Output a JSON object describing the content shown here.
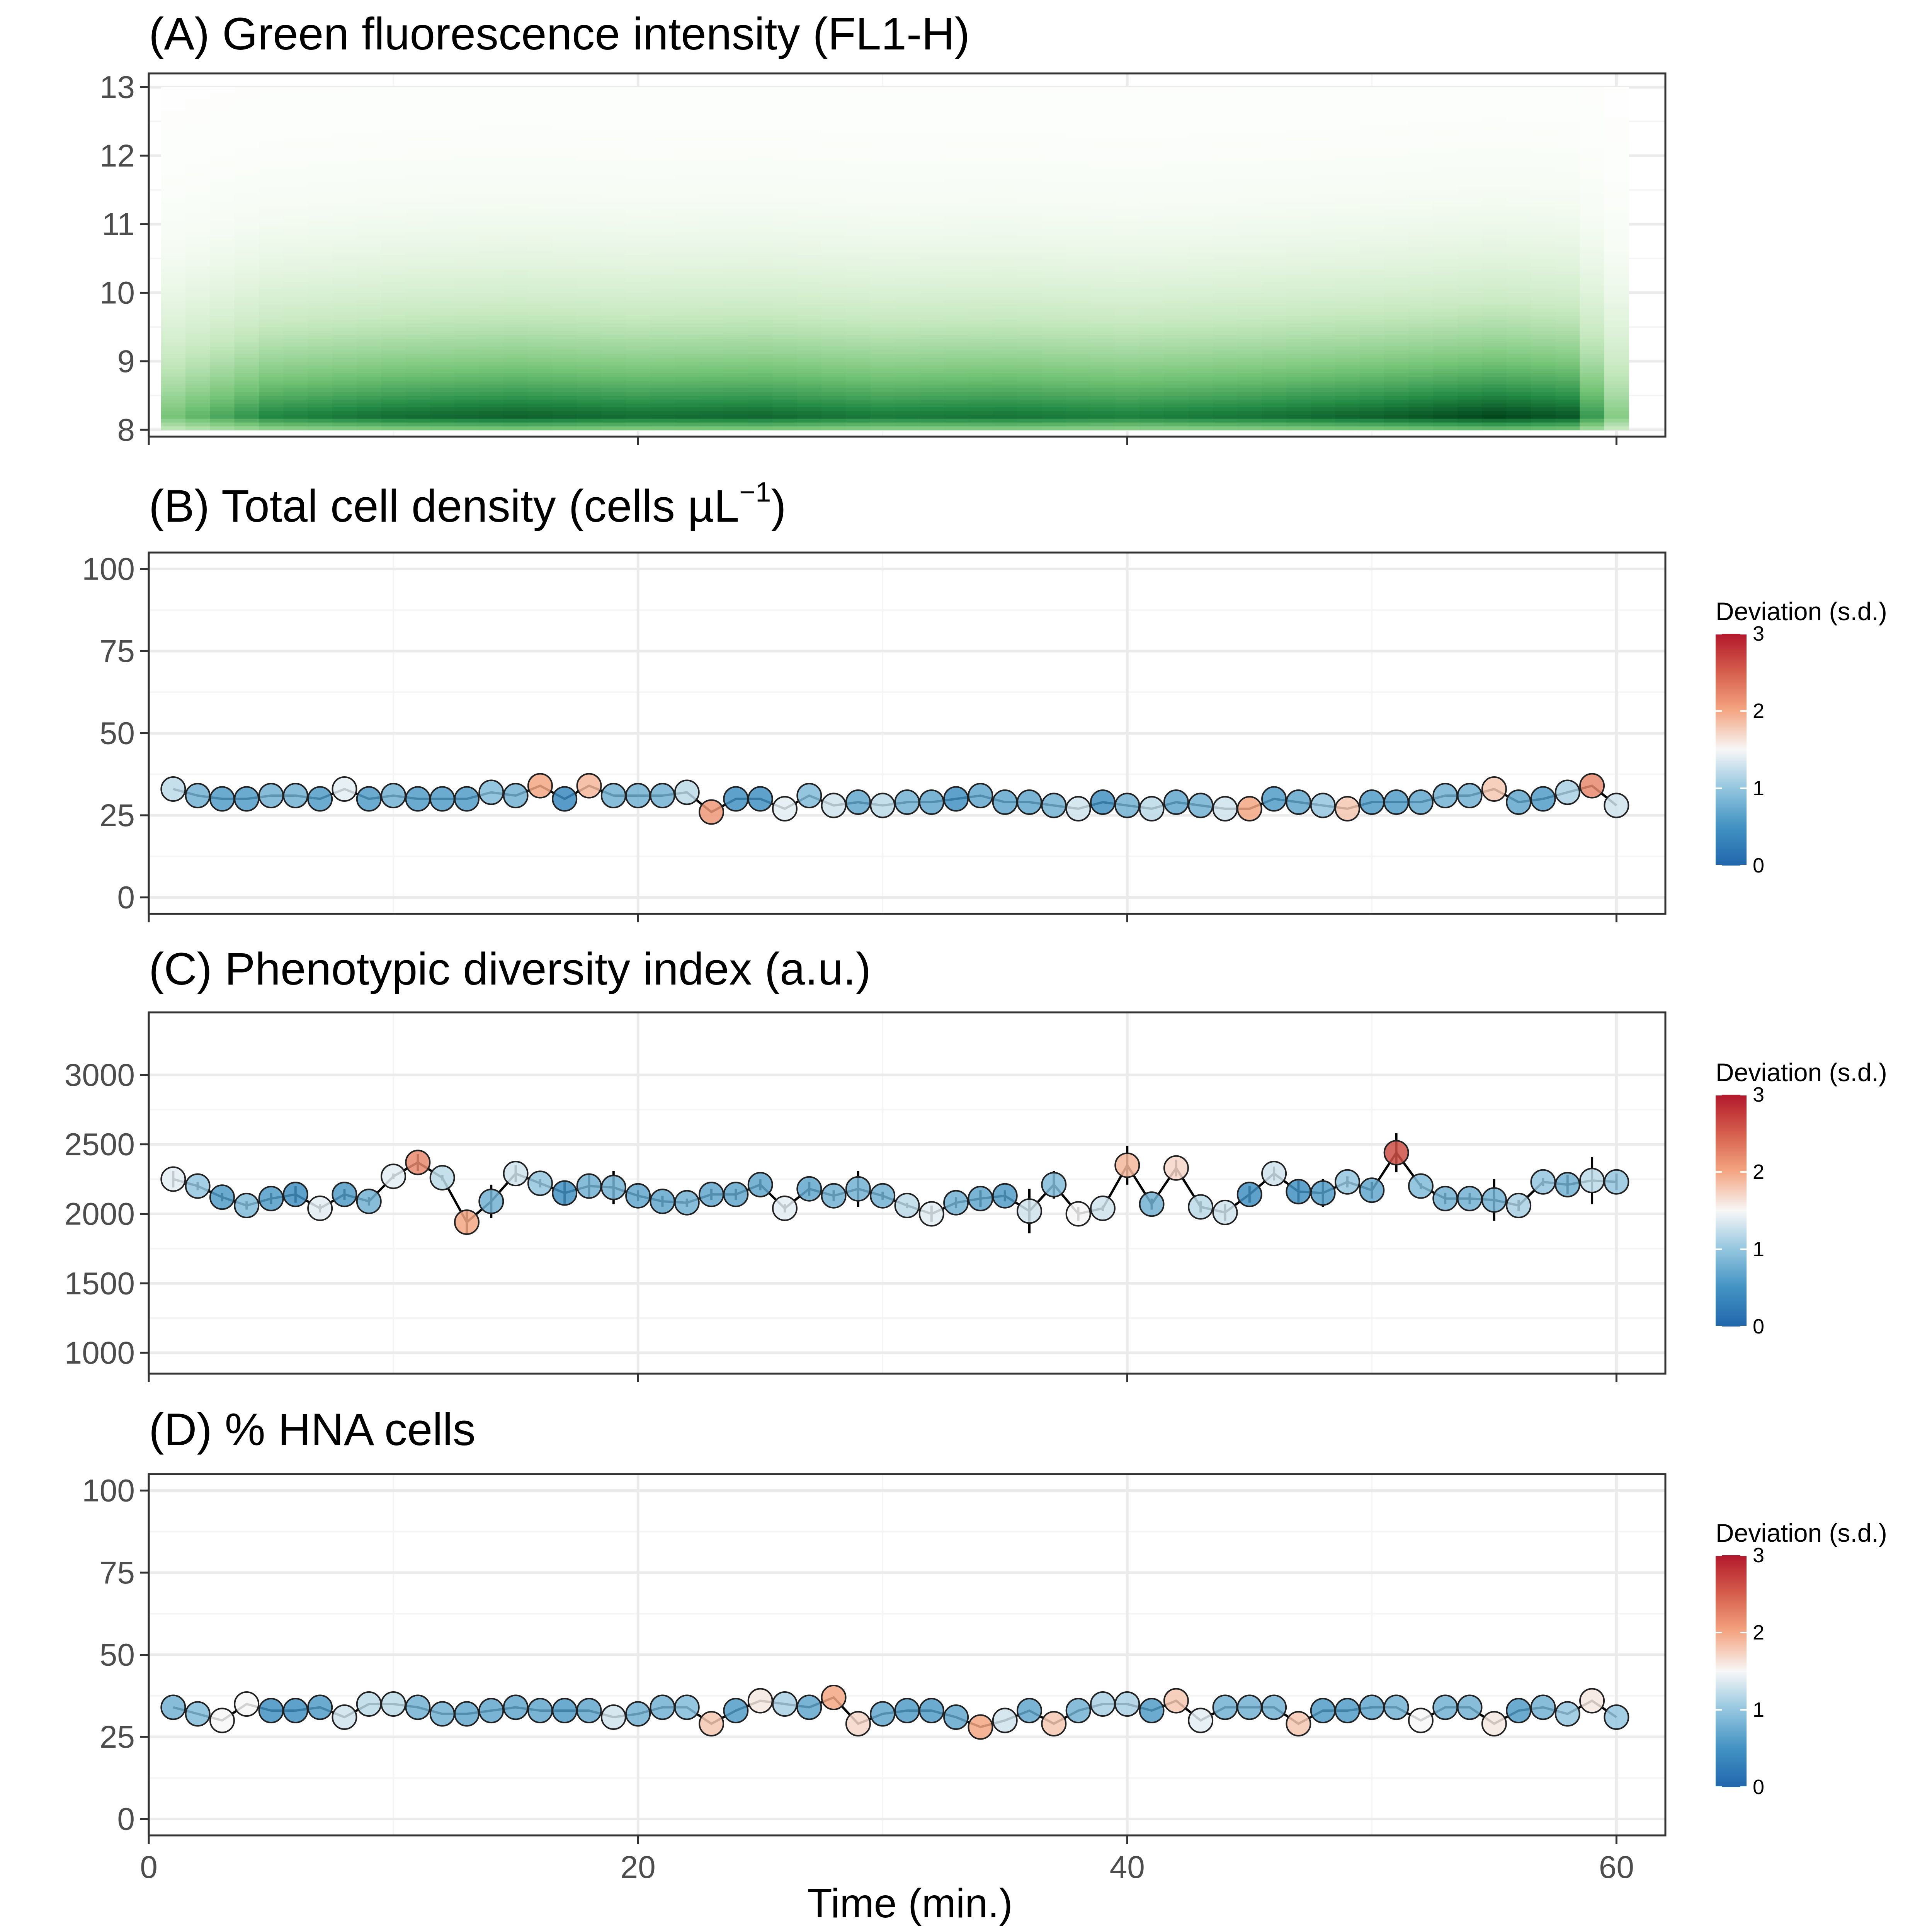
{
  "colors": {
    "panel_border": "#333333",
    "grid_major": "#ebebeb",
    "grid_minor": "#f5f5f5",
    "green_dark": "#00441b",
    "green_mid": "#41ab5d",
    "green_light": "#f7fcf5",
    "deviation_low": "#2166ac",
    "deviation_mid": "#f7f7f7",
    "deviation_high": "#b2182b"
  },
  "x_axis": {
    "label": "Time (min.)",
    "ticks": [
      "0",
      "20",
      "40",
      "60"
    ],
    "tick_values": [
      0,
      20,
      40,
      60
    ],
    "range": [
      0,
      62
    ]
  },
  "legend": {
    "title": "Deviation (s.d.)",
    "ticks": [
      "0",
      "1",
      "2",
      "3"
    ],
    "tick_values": [
      0,
      1,
      2,
      3
    ]
  },
  "chart_data": [
    {
      "id": "A",
      "type": "heatmap",
      "title": "(A) Green fluorescence intensity (FL1-H)",
      "xlabel": "",
      "ylabel": "",
      "x_range": [
        1,
        60
      ],
      "ylim": [
        7.9,
        13.2
      ],
      "y_ticks": [
        "8",
        "9",
        "10",
        "11",
        "12",
        "13"
      ],
      "y_tick_values": [
        8,
        9,
        10,
        11,
        12,
        13
      ],
      "y_extent": [
        8,
        13
      ],
      "density_peak_y": 8.2,
      "intensity_profile_x": [
        1,
        5,
        10,
        15,
        20,
        25,
        30,
        35,
        40,
        45,
        50,
        55,
        58,
        60
      ],
      "intensity_profile_value": [
        0.55,
        0.8,
        0.88,
        0.92,
        0.88,
        0.9,
        0.84,
        0.86,
        0.82,
        0.86,
        0.92,
        1.0,
        0.95,
        0.5
      ]
    },
    {
      "id": "B",
      "type": "scatter",
      "title": "(B) Total cell density (cells µL⁻¹)",
      "title_base": "(B) Total cell density (cells µL",
      "title_sup": "−1",
      "title_end": ")",
      "xlabel": "",
      "ylabel": "",
      "ylim": [
        -5,
        105
      ],
      "y_ticks": [
        "0",
        "25",
        "50",
        "75",
        "100"
      ],
      "y_tick_values": [
        0,
        25,
        50,
        75,
        100
      ],
      "x": [
        1,
        2,
        3,
        4,
        5,
        6,
        7,
        8,
        9,
        10,
        11,
        12,
        13,
        14,
        15,
        16,
        17,
        18,
        19,
        20,
        21,
        22,
        23,
        24,
        25,
        26,
        27,
        28,
        29,
        30,
        31,
        32,
        33,
        34,
        35,
        36,
        37,
        38,
        39,
        40,
        41,
        42,
        43,
        44,
        45,
        46,
        47,
        48,
        49,
        50,
        51,
        52,
        53,
        54,
        55,
        56,
        57,
        58,
        59,
        60
      ],
      "y": [
        33,
        31,
        30,
        30,
        31,
        31,
        30,
        33,
        30,
        31,
        30,
        30,
        30,
        32,
        31,
        34,
        30,
        34,
        31,
        31,
        31,
        32,
        26,
        30,
        30,
        27,
        31,
        28,
        29,
        28,
        29,
        29,
        30,
        31,
        29,
        29,
        28,
        27,
        29,
        28,
        27,
        29,
        28,
        27,
        27,
        30,
        29,
        28,
        27,
        29,
        29,
        29,
        31,
        31,
        33,
        29,
        30,
        32,
        34,
        28
      ],
      "error": [
        0,
        0,
        0,
        0,
        0,
        0,
        0,
        0,
        0,
        0,
        0,
        0,
        0,
        0,
        0,
        0,
        0,
        0,
        0,
        0,
        0,
        0,
        0,
        0,
        0,
        0,
        0,
        0,
        0,
        0,
        0,
        0,
        0,
        0,
        0,
        0,
        0,
        0,
        0,
        0,
        0,
        0,
        0,
        0,
        0,
        0,
        0,
        0,
        0,
        0,
        0,
        0,
        0,
        0,
        0,
        0,
        0,
        0,
        0,
        0
      ],
      "deviation": [
        1.2,
        0.8,
        0.6,
        0.6,
        0.8,
        0.8,
        0.6,
        1.4,
        0.6,
        0.8,
        0.6,
        0.6,
        0.6,
        0.9,
        0.8,
        2.0,
        0.4,
        1.9,
        0.8,
        0.8,
        0.8,
        1.2,
        2.1,
        0.5,
        0.5,
        1.4,
        0.9,
        1.3,
        0.7,
        1.2,
        0.8,
        0.7,
        0.5,
        0.7,
        0.7,
        0.7,
        0.8,
        1.3,
        0.5,
        0.8,
        1.2,
        0.7,
        0.8,
        1.3,
        2.0,
        0.6,
        0.7,
        1.0,
        1.8,
        0.6,
        0.6,
        0.7,
        0.8,
        0.8,
        1.8,
        0.7,
        0.6,
        1.1,
        2.2,
        1.3
      ]
    },
    {
      "id": "C",
      "type": "scatter",
      "title": "(C) Phenotypic diversity index (a.u.)",
      "xlabel": "",
      "ylabel": "",
      "ylim": [
        850,
        3450
      ],
      "y_ticks": [
        "1000",
        "1500",
        "2000",
        "2500",
        "3000"
      ],
      "y_tick_values": [
        1000,
        1500,
        2000,
        2500,
        3000
      ],
      "x": [
        1,
        2,
        3,
        4,
        5,
        6,
        7,
        8,
        9,
        10,
        11,
        12,
        13,
        14,
        15,
        16,
        17,
        18,
        19,
        20,
        21,
        22,
        23,
        24,
        25,
        26,
        27,
        28,
        29,
        30,
        31,
        32,
        33,
        34,
        35,
        36,
        37,
        38,
        39,
        40,
        41,
        42,
        43,
        44,
        45,
        46,
        47,
        48,
        49,
        50,
        51,
        52,
        53,
        54,
        55,
        56,
        57,
        58,
        59,
        60
      ],
      "y": [
        2250,
        2200,
        2120,
        2060,
        2110,
        2140,
        2040,
        2140,
        2090,
        2270,
        2370,
        2260,
        1940,
        2090,
        2290,
        2220,
        2150,
        2200,
        2190,
        2130,
        2090,
        2080,
        2140,
        2140,
        2210,
        2040,
        2180,
        2130,
        2180,
        2130,
        2060,
        2000,
        2080,
        2110,
        2130,
        2020,
        2210,
        2000,
        2040,
        2350,
        2070,
        2330,
        2050,
        2010,
        2140,
        2290,
        2160,
        2150,
        2230,
        2170,
        2440,
        2200,
        2110,
        2110,
        2100,
        2060,
        2230,
        2210,
        2240,
        2230
      ],
      "error": [
        60,
        30,
        30,
        30,
        40,
        60,
        30,
        40,
        30,
        20,
        60,
        20,
        80,
        120,
        60,
        30,
        80,
        80,
        120,
        40,
        40,
        30,
        40,
        40,
        40,
        30,
        50,
        40,
        130,
        30,
        20,
        60,
        40,
        60,
        40,
        160,
        100,
        50,
        20,
        140,
        40,
        60,
        40,
        60,
        60,
        50,
        80,
        100,
        40,
        60,
        140,
        20,
        40,
        40,
        150,
        40,
        30,
        70,
        170,
        60
      ],
      "deviation": [
        1.4,
        1.0,
        0.6,
        0.9,
        0.6,
        0.5,
        1.4,
        0.6,
        0.8,
        1.4,
        2.2,
        1.2,
        2.0,
        0.8,
        1.3,
        1.0,
        0.5,
        0.8,
        0.8,
        0.7,
        0.7,
        0.8,
        0.7,
        0.7,
        0.7,
        1.4,
        0.7,
        0.8,
        0.8,
        0.8,
        1.2,
        1.4,
        0.8,
        0.7,
        0.6,
        1.3,
        0.9,
        1.5,
        1.3,
        1.9,
        0.8,
        1.7,
        1.2,
        1.3,
        0.5,
        1.3,
        0.5,
        0.6,
        1.0,
        0.7,
        2.6,
        0.9,
        0.8,
        0.8,
        0.8,
        1.1,
        1.0,
        0.8,
        1.2,
        1.0
      ]
    },
    {
      "id": "D",
      "type": "scatter",
      "title": "(D) % HNA cells",
      "xlabel": "",
      "ylabel": "",
      "ylim": [
        -5,
        105
      ],
      "y_ticks": [
        "0",
        "25",
        "50",
        "75",
        "100"
      ],
      "y_tick_values": [
        0,
        25,
        50,
        75,
        100
      ],
      "x": [
        1,
        2,
        3,
        4,
        5,
        6,
        7,
        8,
        9,
        10,
        11,
        12,
        13,
        14,
        15,
        16,
        17,
        18,
        19,
        20,
        21,
        22,
        23,
        24,
        25,
        26,
        27,
        28,
        29,
        30,
        31,
        32,
        33,
        34,
        35,
        36,
        37,
        38,
        39,
        40,
        41,
        42,
        43,
        44,
        45,
        46,
        47,
        48,
        49,
        50,
        51,
        52,
        53,
        54,
        55,
        56,
        57,
        58,
        59,
        60
      ],
      "y": [
        34,
        32,
        30,
        35,
        33,
        33,
        34,
        31,
        35,
        35,
        34,
        32,
        32,
        33,
        34,
        33,
        33,
        33,
        31,
        32,
        34,
        34,
        29,
        33,
        36,
        35,
        34,
        37,
        29,
        32,
        33,
        33,
        31,
        28,
        30,
        33,
        29,
        33,
        35,
        35,
        33,
        36,
        30,
        34,
        34,
        34,
        29,
        33,
        33,
        34,
        34,
        30,
        34,
        34,
        29,
        33,
        34,
        32,
        36,
        31
      ],
      "error": [
        0,
        0,
        0,
        0,
        0,
        0,
        0,
        0,
        0,
        0,
        0,
        0,
        0,
        0,
        0,
        0,
        0,
        0,
        0,
        0,
        0,
        0,
        0,
        0,
        0,
        0,
        0,
        0,
        0,
        0,
        0,
        0,
        0,
        0,
        0,
        0,
        0,
        0,
        0,
        0,
        0,
        0,
        0,
        0,
        0,
        0,
        0,
        0,
        0,
        0,
        0,
        0,
        0,
        0,
        0,
        0,
        0,
        0,
        0,
        0
      ],
      "deviation": [
        0.8,
        0.9,
        1.5,
        1.5,
        0.5,
        0.5,
        0.6,
        1.3,
        1.2,
        1.2,
        0.8,
        0.8,
        0.7,
        0.7,
        0.7,
        0.7,
        0.6,
        0.7,
        1.3,
        0.8,
        0.8,
        0.9,
        1.8,
        0.6,
        1.6,
        1.1,
        0.7,
        2.0,
        1.7,
        0.7,
        0.6,
        0.6,
        0.7,
        2.0,
        1.3,
        0.7,
        1.8,
        0.8,
        1.1,
        1.1,
        0.6,
        1.8,
        1.4,
        0.8,
        0.8,
        0.8,
        1.8,
        0.6,
        0.6,
        0.7,
        0.8,
        1.5,
        0.8,
        0.8,
        1.6,
        0.6,
        0.8,
        1.0,
        1.6,
        1.0
      ]
    }
  ]
}
